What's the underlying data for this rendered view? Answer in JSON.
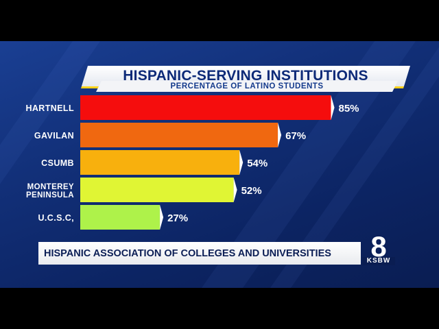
{
  "chart_data": {
    "type": "bar",
    "orientation": "horizontal",
    "title": "HISPANIC-SERVING INSTITUTIONS",
    "subtitle": "PERCENTAGE OF LATINO STUDENTS",
    "categories": [
      "HARTNELL",
      "GAVILAN",
      "CSUMB",
      "MONTEREY PENINSULA",
      "U.C.S.C,"
    ],
    "values": [
      85,
      67,
      54,
      52,
      27
    ],
    "value_labels": [
      "85%",
      "67%",
      "54%",
      "52%",
      "27%"
    ],
    "bar_colors": [
      "#f50d0d",
      "#f06810",
      "#f8b00d",
      "#e0f534",
      "#aef24a"
    ],
    "xlim": [
      0,
      100
    ],
    "grid": false,
    "legend": "none"
  },
  "footer": {
    "source": "HISPANIC ASSOCIATION OF COLLEGES AND UNIVERSITIES"
  },
  "logo": {
    "number": "8",
    "call_letters": "KSBW"
  },
  "colors": {
    "background": "#0c2463",
    "title_text": "#0d2a78",
    "accent": "#ffd21a"
  }
}
